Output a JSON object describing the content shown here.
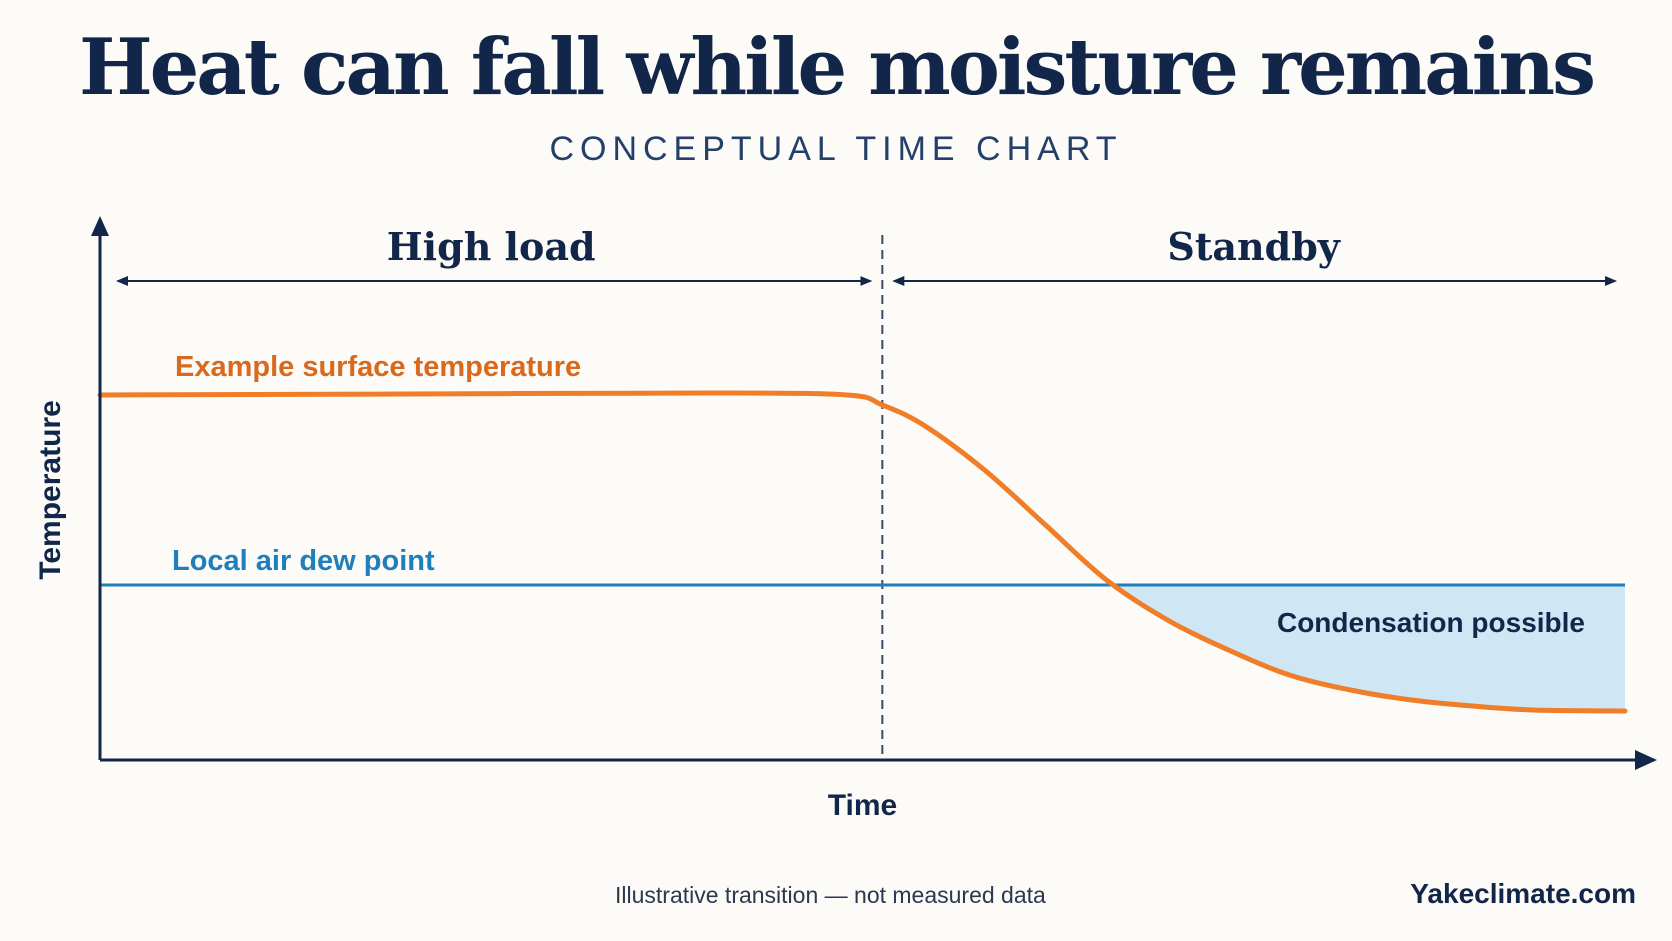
{
  "header": {
    "title": "Heat can fall while moisture remains",
    "subtitle": "CONCEPTUAL TIME CHART"
  },
  "chart_data": {
    "type": "line",
    "title": "Heat can fall while moisture remains",
    "subtitle": "CONCEPTUAL TIME CHART",
    "xlabel": "Time",
    "ylabel": "Temperature",
    "xlim": [
      0,
      100
    ],
    "ylim": [
      0,
      100
    ],
    "grid": false,
    "phases": [
      {
        "label": "High load",
        "start": 0,
        "end": 51.3
      },
      {
        "label": "Standby",
        "start": 51.3,
        "end": 100
      }
    ],
    "series": [
      {
        "name": "Example surface temperature",
        "color": "#f07d28",
        "x": [
          0,
          20,
          40,
          49,
          51.3,
          54,
          58,
          62,
          66,
          70,
          74,
          78,
          82,
          86,
          90,
          94,
          100
        ],
        "y": [
          73,
          73.2,
          73.4,
          73,
          71,
          67,
          58,
          47,
          36,
          28,
          22,
          17,
          14,
          12,
          10.8,
          10,
          9.8
        ]
      },
      {
        "name": "Local air dew point",
        "color": "#1f7fbd",
        "x": [
          0,
          100
        ],
        "y": [
          35,
          35
        ]
      }
    ],
    "annotations": [
      {
        "text": "Condensation possible",
        "shaded_color": "#cfe6f4"
      }
    ]
  },
  "footer": {
    "note": "Illustrative transition — not measured data",
    "brand": "Yakeclimate.com"
  }
}
